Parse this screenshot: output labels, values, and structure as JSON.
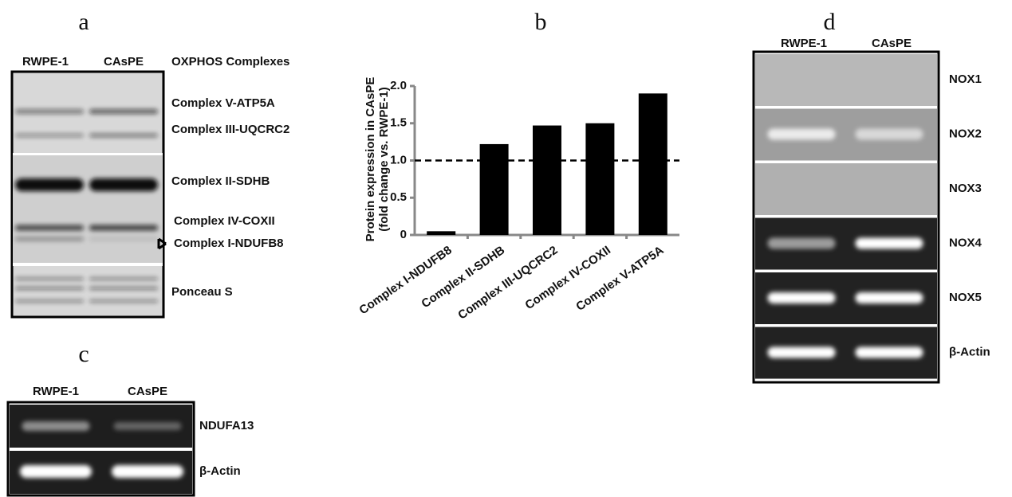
{
  "panel_a": {
    "label": "a",
    "lanes": [
      "RWPE-1",
      "CAsPE"
    ],
    "heading": "OXPHOS Complexes",
    "bands": [
      "Complex  V-ATP5A",
      "Complex III-UQCRC2",
      "Complex II-SDHB",
      "Complex IV-COXII",
      "Complex I-NDUFB8",
      "Ponceau S"
    ]
  },
  "chart_data": {
    "type": "bar",
    "panel_label": "b",
    "y_label": [
      "Protein expression in CAsPE",
      "(fold change vs. RWPE-1)"
    ],
    "categories": [
      "Complex I-NDUFB8",
      "Complex II-SDHB",
      "Complex III-UQCRC2",
      "Complex IV-COXII",
      "Complex V-ATP5A"
    ],
    "values": [
      0.05,
      1.22,
      1.47,
      1.5,
      1.9
    ],
    "color": "#000000",
    "ylim": [
      0,
      2
    ],
    "yticks": [
      0,
      0.5,
      {
        "value": 1,
        "label": "1.0"
      },
      1.5,
      {
        "value": 2,
        "label": "2.0"
      }
    ],
    "reference_line": 1
  },
  "panel_c": {
    "label": "c",
    "lanes": [
      "RWPE-1",
      "CAsPE"
    ],
    "rows": [
      "NDUFA13",
      "β-Actin"
    ]
  },
  "panel_d": {
    "label": "d",
    "lanes": [
      "RWPE-1",
      "CAsPE"
    ],
    "rows": [
      "NOX1",
      "NOX2",
      "NOX3",
      "NOX4",
      "NOX5",
      "β-Actin"
    ]
  }
}
